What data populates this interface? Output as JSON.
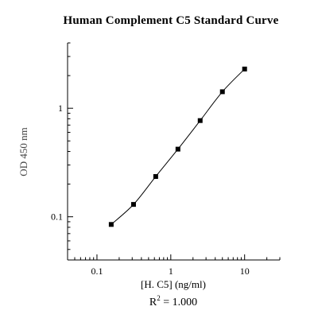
{
  "chart_data": {
    "type": "line",
    "title": "Human Complement C5 Standard Curve",
    "xlabel": "[H. C5] (ng/ml)",
    "ylabel": "OD 450 nm",
    "r2_prefix": "R",
    "r2_exponent": "2",
    "r2_value": " = 1.000",
    "x_scale": "log",
    "y_scale": "log",
    "xlim": [
      0.04,
      30
    ],
    "ylim": [
      0.04,
      4
    ],
    "x_ticks": [
      {
        "value": 0.1,
        "label": "0.1"
      },
      {
        "value": 1,
        "label": "1"
      },
      {
        "value": 10,
        "label": "10"
      }
    ],
    "y_ticks": [
      {
        "value": 0.1,
        "label": "0.1"
      },
      {
        "value": 1,
        "label": "1"
      }
    ],
    "grid": false,
    "series": [
      {
        "x": [
          0.156,
          0.313,
          0.625,
          1.25,
          2.5,
          5,
          10
        ],
        "y": [
          0.085,
          0.13,
          0.235,
          0.42,
          0.77,
          1.42,
          2.3
        ]
      }
    ],
    "colors": {
      "line": "#000000",
      "marker": "#000000",
      "axis": "#000000"
    }
  }
}
